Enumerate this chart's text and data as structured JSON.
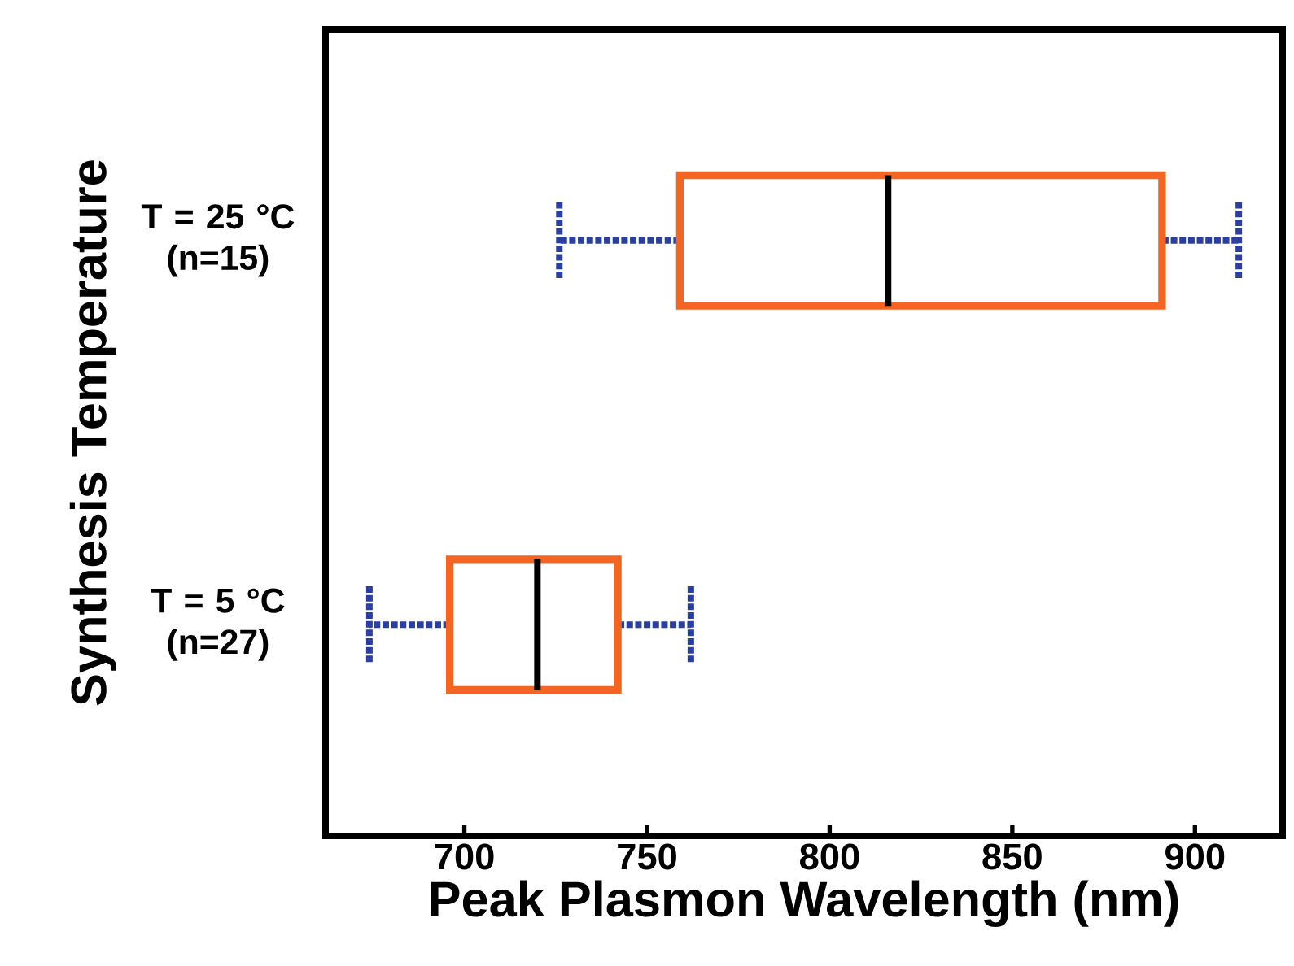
{
  "chart_data": {
    "type": "box",
    "orientation": "horizontal",
    "xlabel": "Peak Plasmon Wavelength (nm)",
    "ylabel": "Synthesis Temperature",
    "categories": [
      "T = 25 °C (n=15)",
      "T = 5 °C (n=27)"
    ],
    "series": [
      {
        "color": "#f26522",
        "boxes": [
          {
            "low": 726,
            "q1": 759,
            "median": 816,
            "q3": 891,
            "high": 912
          },
          {
            "low": 674,
            "q1": 696,
            "median": 720,
            "q3": 742,
            "high": 762
          }
        ]
      }
    ],
    "line_style": "dotted",
    "xlim": [
      662,
      924
    ],
    "xticks": [
      700,
      750,
      800,
      850,
      900
    ],
    "grid": false
  }
}
